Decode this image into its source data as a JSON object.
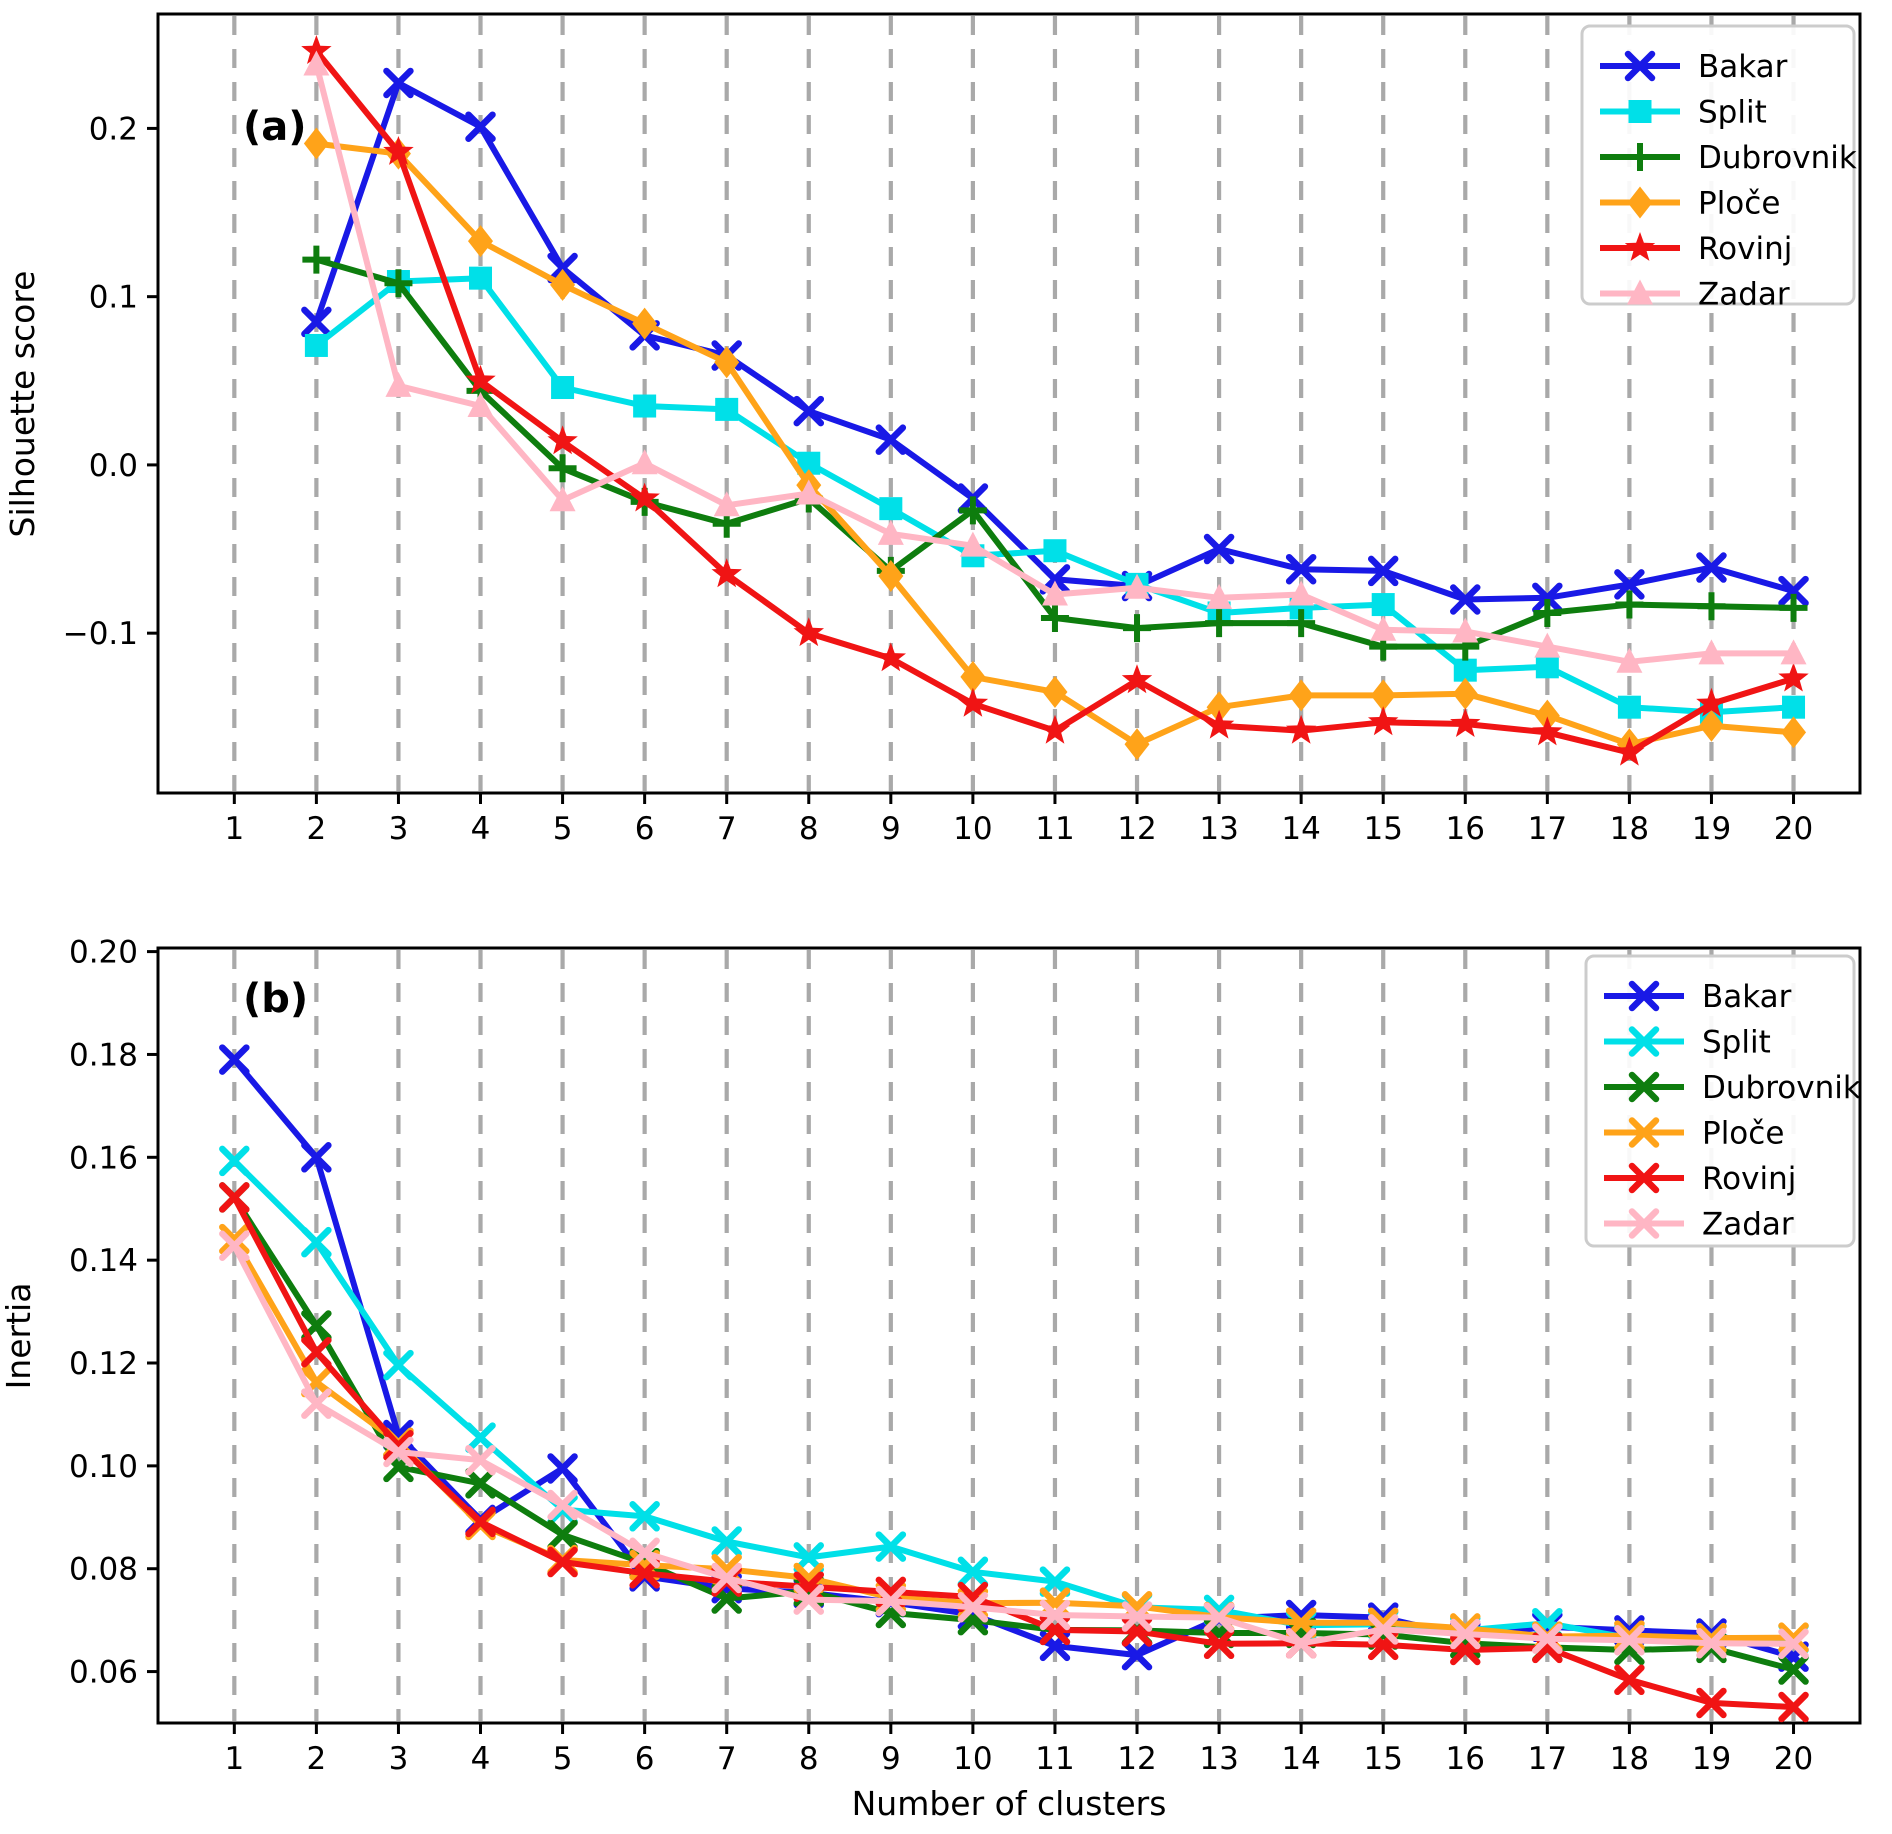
{
  "figure": {
    "background": "#ffffff",
    "grid_color": "#a9a9a9",
    "spine_color": "#000000"
  },
  "chart_data": [
    {
      "type": "line",
      "panel_label": "(a)",
      "ylabel": "Silhouette score",
      "xlabel": "",
      "grid": "vertical-dashed",
      "legend_position": "upper right",
      "xlim": [
        0.07,
        20.81
      ],
      "ylim": [
        -0.195,
        0.268
      ],
      "xticks": [
        1,
        2,
        3,
        4,
        5,
        6,
        7,
        8,
        9,
        10,
        11,
        12,
        13,
        14,
        15,
        16,
        17,
        18,
        19,
        20
      ],
      "xtick_labels": [
        "1",
        "2",
        "3",
        "4",
        "5",
        "6",
        "7",
        "8",
        "9",
        "10",
        "11",
        "12",
        "13",
        "14",
        "15",
        "16",
        "17",
        "18",
        "19",
        "20"
      ],
      "yticks": [
        0.2,
        0.1,
        0.0,
        -0.1
      ],
      "ytick_labels": [
        "0.2",
        "0.1",
        "0.0",
        "−0.1"
      ],
      "x_start": 2,
      "series": [
        {
          "name": "Bakar",
          "color": "#1919e6",
          "marker": "x",
          "values": [
            0.085,
            0.227,
            0.201,
            0.117,
            0.077,
            0.065,
            0.032,
            0.015,
            -0.02,
            -0.068,
            -0.072,
            -0.05,
            -0.062,
            -0.063,
            -0.08,
            -0.079,
            -0.071,
            -0.061,
            -0.075
          ]
        },
        {
          "name": "Split",
          "color": "#00e0e8",
          "marker": "square",
          "values": [
            0.071,
            0.109,
            0.111,
            0.046,
            0.035,
            0.033,
            0.001,
            -0.026,
            -0.054,
            -0.051,
            -0.071,
            -0.088,
            -0.085,
            -0.083,
            -0.122,
            -0.12,
            -0.144,
            -0.147,
            -0.144
          ]
        },
        {
          "name": "Dubrovnik",
          "color": "#0e7d0e",
          "marker": "plus",
          "values": [
            0.122,
            0.108,
            0.044,
            -0.002,
            -0.022,
            -0.035,
            -0.02,
            -0.063,
            -0.027,
            -0.091,
            -0.097,
            -0.094,
            -0.094,
            -0.108,
            -0.108,
            -0.088,
            -0.083,
            -0.084,
            -0.085
          ]
        },
        {
          "name": "Ploče",
          "color": "#ffa319",
          "marker": "diamond",
          "values": [
            0.191,
            0.185,
            0.133,
            0.107,
            0.084,
            0.061,
            -0.012,
            -0.066,
            -0.126,
            -0.135,
            -0.166,
            -0.144,
            -0.137,
            -0.137,
            -0.136,
            -0.149,
            -0.166,
            -0.155,
            -0.159
          ]
        },
        {
          "name": "Rovinj",
          "color": "#f01414",
          "marker": "star",
          "values": [
            0.246,
            0.186,
            0.05,
            0.014,
            -0.02,
            -0.065,
            -0.1,
            -0.115,
            -0.142,
            -0.158,
            -0.128,
            -0.155,
            -0.158,
            -0.153,
            -0.154,
            -0.159,
            -0.171,
            -0.142,
            -0.127
          ]
        },
        {
          "name": "Zadar",
          "color": "#ffb6c4",
          "marker": "triangle",
          "values": [
            0.238,
            0.047,
            0.035,
            -0.021,
            0.001,
            -0.024,
            -0.017,
            -0.041,
            -0.048,
            -0.077,
            -0.073,
            -0.079,
            -0.077,
            -0.098,
            -0.099,
            -0.108,
            -0.117,
            -0.112,
            -0.112
          ]
        }
      ]
    },
    {
      "type": "line",
      "panel_label": "(b)",
      "ylabel": "Inertia",
      "xlabel": "Number of clusters",
      "grid": "vertical-dashed",
      "legend_position": "upper right",
      "xlim": [
        0.07,
        20.81
      ],
      "ylim": [
        0.05,
        0.2007
      ],
      "xticks": [
        1,
        2,
        3,
        4,
        5,
        6,
        7,
        8,
        9,
        10,
        11,
        12,
        13,
        14,
        15,
        16,
        17,
        18,
        19,
        20
      ],
      "xtick_labels": [
        "1",
        "2",
        "3",
        "4",
        "5",
        "6",
        "7",
        "8",
        "9",
        "10",
        "11",
        "12",
        "13",
        "14",
        "15",
        "16",
        "17",
        "18",
        "19",
        "20"
      ],
      "yticks": [
        0.2,
        0.18,
        0.16,
        0.14,
        0.12,
        0.1,
        0.08,
        0.06
      ],
      "ytick_labels": [
        "0.20",
        "0.18",
        "0.16",
        "0.14",
        "0.12",
        "0.10",
        "0.08",
        "0.06"
      ],
      "x_start": 1,
      "series": [
        {
          "name": "Bakar",
          "color": "#1919e6",
          "marker": "x",
          "values": [
            0.179,
            0.16,
            0.106,
            0.0895,
            0.0995,
            0.0785,
            0.0762,
            0.0753,
            0.0735,
            0.0711,
            0.065,
            0.0632,
            0.0703,
            0.071,
            0.0705,
            0.0668,
            0.0687,
            0.068,
            0.0674,
            0.0629
          ]
        },
        {
          "name": "Split",
          "color": "#00e0e8",
          "marker": "x",
          "values": [
            0.1593,
            0.1435,
            0.1196,
            0.1055,
            0.0915,
            0.0902,
            0.0853,
            0.0822,
            0.0843,
            0.0794,
            0.0775,
            0.0725,
            0.072,
            0.069,
            0.0692,
            0.068,
            0.0694,
            0.0665,
            0.0665,
            0.0665
          ]
        },
        {
          "name": "Dubrovnik",
          "color": "#0e7d0e",
          "marker": "x",
          "values": [
            0.1522,
            0.1273,
            0.0998,
            0.0966,
            0.0866,
            0.0811,
            0.0742,
            0.0756,
            0.0714,
            0.07,
            0.0681,
            0.068,
            0.0675,
            0.0675,
            0.0672,
            0.0655,
            0.0647,
            0.0642,
            0.0646,
            0.0604
          ]
        },
        {
          "name": "Ploče",
          "color": "#ffa319",
          "marker": "x",
          "values": [
            0.1441,
            0.1163,
            0.1045,
            0.0885,
            0.0817,
            0.0807,
            0.0799,
            0.0782,
            0.0744,
            0.0733,
            0.0734,
            0.0727,
            0.0706,
            0.0695,
            0.0695,
            0.0684,
            0.0668,
            0.067,
            0.0665,
            0.0666
          ]
        },
        {
          "name": "Rovinj",
          "color": "#f01414",
          "marker": "x",
          "values": [
            0.1522,
            0.1221,
            0.104,
            0.0891,
            0.0813,
            0.0791,
            0.0775,
            0.0765,
            0.0755,
            0.0745,
            0.0681,
            0.0678,
            0.0654,
            0.0655,
            0.0652,
            0.0642,
            0.0646,
            0.0584,
            0.0539,
            0.0531
          ]
        },
        {
          "name": "Zadar",
          "color": "#ffb6c4",
          "marker": "x",
          "values": [
            0.1428,
            0.1121,
            0.1027,
            0.1011,
            0.0924,
            0.0831,
            0.0782,
            0.074,
            0.0737,
            0.0725,
            0.071,
            0.0707,
            0.0705,
            0.0655,
            0.0682,
            0.0673,
            0.0664,
            0.0661,
            0.0655,
            0.0654
          ]
        }
      ]
    }
  ]
}
